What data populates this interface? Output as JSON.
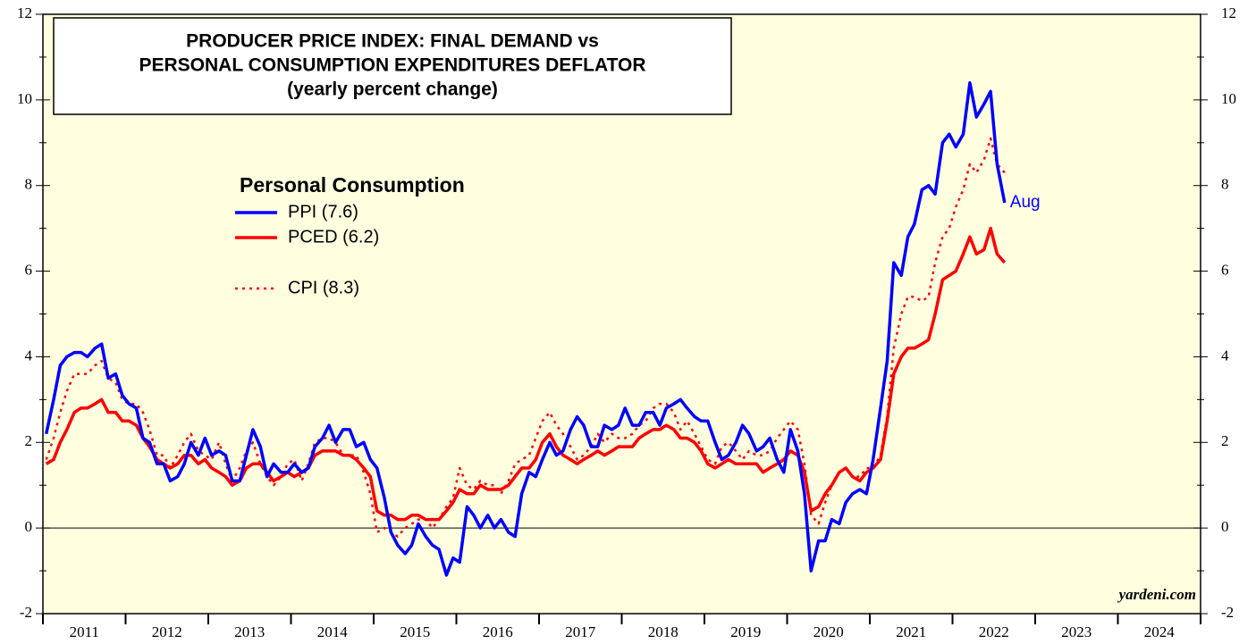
{
  "chart_data": {
    "type": "line",
    "title": [
      "PRODUCER PRICE INDEX: FINAL DEMAND vs",
      "PERSONAL CONSUMPTION EXPENDITURES DEFLATOR",
      "(yearly percent change)"
    ],
    "legend_title": "Personal Consumption",
    "annotation": "Aug",
    "source": "yardeni.com",
    "xlim": [
      2011,
      2025
    ],
    "ylim": [
      -2,
      12
    ],
    "yticks": [
      -2,
      0,
      2,
      4,
      6,
      8,
      10,
      12
    ],
    "xticks": [
      {
        "value": 2011.5,
        "label": "2011"
      },
      {
        "value": 2012.5,
        "label": "2012"
      },
      {
        "value": 2013.5,
        "label": "2013"
      },
      {
        "value": 2014.5,
        "label": "2014"
      },
      {
        "value": 2015.5,
        "label": "2015"
      },
      {
        "value": 2016.5,
        "label": "2016"
      },
      {
        "value": 2017.5,
        "label": "2017"
      },
      {
        "value": 2018.5,
        "label": "2018"
      },
      {
        "value": 2019.5,
        "label": "2019"
      },
      {
        "value": 2020.5,
        "label": "2020"
      },
      {
        "value": 2021.5,
        "label": "2021"
      },
      {
        "value": 2022.5,
        "label": "2022"
      },
      {
        "value": 2023.5,
        "label": "2023"
      },
      {
        "value": 2024.5,
        "label": "2024"
      }
    ],
    "x": [
      2011.04,
      2011.13,
      2011.21,
      2011.29,
      2011.38,
      2011.46,
      2011.54,
      2011.63,
      2011.71,
      2011.79,
      2011.88,
      2011.96,
      2012.04,
      2012.13,
      2012.21,
      2012.29,
      2012.38,
      2012.46,
      2012.54,
      2012.63,
      2012.71,
      2012.79,
      2012.88,
      2012.96,
      2013.04,
      2013.13,
      2013.21,
      2013.29,
      2013.38,
      2013.46,
      2013.54,
      2013.63,
      2013.71,
      2013.79,
      2013.88,
      2013.96,
      2014.04,
      2014.13,
      2014.21,
      2014.29,
      2014.38,
      2014.46,
      2014.54,
      2014.63,
      2014.71,
      2014.79,
      2014.88,
      2014.96,
      2015.04,
      2015.13,
      2015.21,
      2015.29,
      2015.38,
      2015.46,
      2015.54,
      2015.63,
      2015.71,
      2015.79,
      2015.88,
      2015.96,
      2016.04,
      2016.13,
      2016.21,
      2016.29,
      2016.38,
      2016.46,
      2016.54,
      2016.63,
      2016.71,
      2016.79,
      2016.88,
      2016.96,
      2017.04,
      2017.13,
      2017.21,
      2017.29,
      2017.38,
      2017.46,
      2017.54,
      2017.63,
      2017.71,
      2017.79,
      2017.88,
      2017.96,
      2018.04,
      2018.13,
      2018.21,
      2018.29,
      2018.38,
      2018.46,
      2018.54,
      2018.63,
      2018.71,
      2018.79,
      2018.88,
      2018.96,
      2019.04,
      2019.13,
      2019.21,
      2019.29,
      2019.38,
      2019.46,
      2019.54,
      2019.63,
      2019.71,
      2019.79,
      2019.88,
      2019.96,
      2020.04,
      2020.13,
      2020.21,
      2020.29,
      2020.38,
      2020.46,
      2020.54,
      2020.63,
      2020.71,
      2020.79,
      2020.88,
      2020.96,
      2021.04,
      2021.13,
      2021.21,
      2021.29,
      2021.38,
      2021.46,
      2021.54,
      2021.63,
      2021.71,
      2021.79,
      2021.88,
      2021.96,
      2022.04,
      2022.13,
      2022.21,
      2022.29,
      2022.38,
      2022.46,
      2022.54,
      2022.63
    ],
    "series": [
      {
        "name": "PPI (7.6)",
        "color": "#0000ff",
        "dash": "solid",
        "values": [
          2.2,
          3.0,
          3.8,
          4.0,
          4.1,
          4.1,
          4.0,
          4.2,
          4.3,
          3.5,
          3.6,
          3.1,
          2.9,
          2.8,
          2.1,
          2.0,
          1.5,
          1.5,
          1.1,
          1.2,
          1.5,
          2.0,
          1.7,
          2.1,
          1.7,
          1.8,
          1.7,
          1.1,
          1.1,
          1.7,
          2.3,
          1.9,
          1.2,
          1.5,
          1.3,
          1.3,
          1.5,
          1.3,
          1.4,
          1.9,
          2.1,
          2.4,
          2.0,
          2.3,
          2.3,
          1.9,
          2.0,
          1.6,
          1.4,
          0.7,
          -0.1,
          -0.4,
          -0.6,
          -0.4,
          0.1,
          -0.2,
          -0.4,
          -0.5,
          -1.1,
          -0.7,
          -0.8,
          0.5,
          0.3,
          0.0,
          0.3,
          0.0,
          0.2,
          -0.1,
          -0.2,
          0.8,
          1.3,
          1.2,
          1.6,
          2.0,
          1.7,
          1.8,
          2.3,
          2.6,
          2.4,
          1.9,
          1.9,
          2.4,
          2.3,
          2.4,
          2.8,
          2.4,
          2.4,
          2.7,
          2.7,
          2.4,
          2.8,
          2.9,
          3.0,
          2.8,
          2.6,
          2.5,
          2.5,
          2.0,
          1.6,
          1.7,
          2.0,
          2.4,
          2.2,
          1.8,
          1.9,
          2.1,
          1.6,
          1.3,
          2.3,
          1.8,
          0.8,
          -1.0,
          -0.3,
          -0.3,
          0.2,
          0.1,
          0.6,
          0.8,
          0.9,
          0.8,
          1.6,
          2.8,
          3.9,
          6.2,
          5.9,
          6.8,
          7.1,
          7.9,
          8.0,
          7.8,
          9.0,
          9.2,
          8.9,
          9.2,
          10.4,
          9.6,
          9.9,
          10.2,
          8.5,
          7.6
        ]
      },
      {
        "name": "PCED (6.2)",
        "color": "#ff0000",
        "dash": "solid",
        "values": [
          1.5,
          1.6,
          2.0,
          2.3,
          2.7,
          2.8,
          2.8,
          2.9,
          3.0,
          2.7,
          2.7,
          2.5,
          2.5,
          2.4,
          2.1,
          1.9,
          1.6,
          1.5,
          1.4,
          1.5,
          1.7,
          1.7,
          1.5,
          1.6,
          1.4,
          1.3,
          1.2,
          1.0,
          1.1,
          1.4,
          1.5,
          1.5,
          1.3,
          1.1,
          1.2,
          1.3,
          1.2,
          1.3,
          1.4,
          1.7,
          1.8,
          1.8,
          1.8,
          1.7,
          1.7,
          1.6,
          1.4,
          1.2,
          0.4,
          0.3,
          0.3,
          0.2,
          0.2,
          0.3,
          0.3,
          0.2,
          0.2,
          0.2,
          0.4,
          0.6,
          0.9,
          0.8,
          0.8,
          1.0,
          0.9,
          0.9,
          0.9,
          1.0,
          1.2,
          1.4,
          1.4,
          1.6,
          2.0,
          2.2,
          1.9,
          1.7,
          1.6,
          1.5,
          1.6,
          1.7,
          1.8,
          1.7,
          1.8,
          1.9,
          1.9,
          1.9,
          2.1,
          2.2,
          2.3,
          2.3,
          2.4,
          2.3,
          2.1,
          2.1,
          2.0,
          1.8,
          1.5,
          1.4,
          1.5,
          1.6,
          1.5,
          1.5,
          1.5,
          1.5,
          1.3,
          1.4,
          1.5,
          1.6,
          1.8,
          1.7,
          1.3,
          0.4,
          0.5,
          0.8,
          1.0,
          1.3,
          1.4,
          1.2,
          1.1,
          1.3,
          1.4,
          1.6,
          2.5,
          3.6,
          4.0,
          4.2,
          4.2,
          4.3,
          4.4,
          5.0,
          5.8,
          5.9,
          6.0,
          6.4,
          6.8,
          6.4,
          6.5,
          7.0,
          6.4,
          6.2
        ]
      },
      {
        "name": "CPI (8.3)",
        "color": "#ff0000",
        "dash": "dotted",
        "values": [
          1.6,
          2.1,
          2.7,
          3.2,
          3.6,
          3.6,
          3.6,
          3.8,
          3.9,
          3.5,
          3.4,
          3.0,
          2.9,
          2.9,
          2.7,
          2.3,
          1.7,
          1.7,
          1.4,
          1.7,
          2.0,
          2.2,
          1.8,
          1.7,
          1.6,
          2.0,
          1.5,
          1.1,
          1.4,
          1.8,
          2.0,
          1.5,
          1.2,
          1.0,
          1.2,
          1.5,
          1.6,
          1.1,
          1.5,
          2.0,
          2.1,
          2.1,
          2.0,
          1.7,
          1.7,
          1.7,
          1.3,
          0.8,
          -0.1,
          0.0,
          -0.1,
          -0.2,
          0.0,
          0.1,
          0.2,
          0.2,
          0.0,
          0.2,
          0.5,
          0.7,
          1.4,
          1.0,
          0.9,
          1.1,
          1.0,
          1.0,
          0.8,
          1.1,
          1.5,
          1.6,
          1.7,
          2.1,
          2.5,
          2.7,
          2.4,
          2.2,
          1.9,
          1.6,
          1.7,
          1.9,
          2.2,
          2.0,
          2.2,
          2.1,
          2.1,
          2.2,
          2.4,
          2.5,
          2.8,
          2.9,
          2.9,
          2.7,
          2.3,
          2.5,
          2.2,
          1.9,
          1.6,
          1.5,
          1.9,
          2.0,
          1.8,
          1.6,
          1.8,
          1.7,
          1.7,
          1.8,
          2.1,
          2.3,
          2.5,
          2.3,
          1.5,
          0.3,
          0.1,
          0.6,
          1.0,
          1.3,
          1.4,
          1.2,
          1.2,
          1.4,
          1.4,
          1.7,
          2.6,
          4.2,
          5.0,
          5.4,
          5.4,
          5.3,
          5.4,
          6.2,
          6.8,
          7.0,
          7.5,
          7.9,
          8.5,
          8.3,
          8.6,
          9.1,
          8.5,
          8.3
        ]
      }
    ]
  }
}
